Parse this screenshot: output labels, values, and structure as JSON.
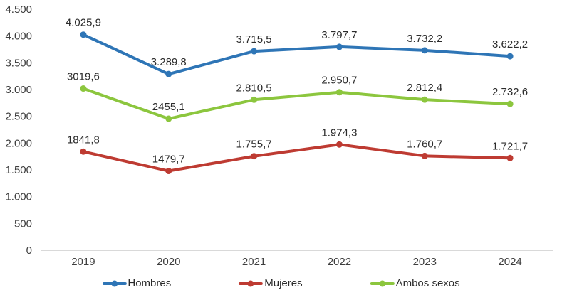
{
  "chart_data": {
    "type": "line",
    "title": "",
    "xlabel": "",
    "ylabel": "",
    "grid": false,
    "legend_position": "bottom",
    "categories": [
      "2019",
      "2020",
      "2021",
      "2022",
      "2023",
      "2024"
    ],
    "series": [
      {
        "name": "Hombres",
        "color": "#2E75B6",
        "values": [
          4025.9,
          3289.8,
          3715.5,
          3797.7,
          3732.2,
          3622.2
        ],
        "labels": [
          "4.025,9",
          "3.289,8",
          "3.715,5",
          "3.797,7",
          "3.732,2",
          "3.622,2"
        ]
      },
      {
        "name": "Mujeres",
        "color": "#BE3B32",
        "values": [
          1841.8,
          1479.7,
          1755.7,
          1974.3,
          1760.7,
          1721.7
        ],
        "labels": [
          "1841,8",
          "1479,7",
          "1.755,7",
          "1.974,3",
          "1.760,7",
          "1.721,7"
        ]
      },
      {
        "name": "Ambos sexos",
        "color": "#8CC63E",
        "values": [
          3019.6,
          2455.1,
          2810.5,
          2950.7,
          2812.4,
          2732.6
        ],
        "labels": [
          "3019,6",
          "2455,1",
          "2.810,5",
          "2.950,7",
          "2.812,4",
          "2.732,6"
        ]
      }
    ],
    "ylim": [
      0,
      4500
    ],
    "yticks": [
      {
        "value": 0,
        "label": "0"
      },
      {
        "value": 500,
        "label": "500"
      },
      {
        "value": 1000,
        "label": "1.000"
      },
      {
        "value": 1500,
        "label": "1.500"
      },
      {
        "value": 2000,
        "label": "2.000"
      },
      {
        "value": 2500,
        "label": "2.500"
      },
      {
        "value": 3000,
        "label": "3.000"
      },
      {
        "value": 3500,
        "label": "3.500"
      },
      {
        "value": 4000,
        "label": "4.000"
      },
      {
        "value": 4500,
        "label": "4.500"
      }
    ]
  }
}
